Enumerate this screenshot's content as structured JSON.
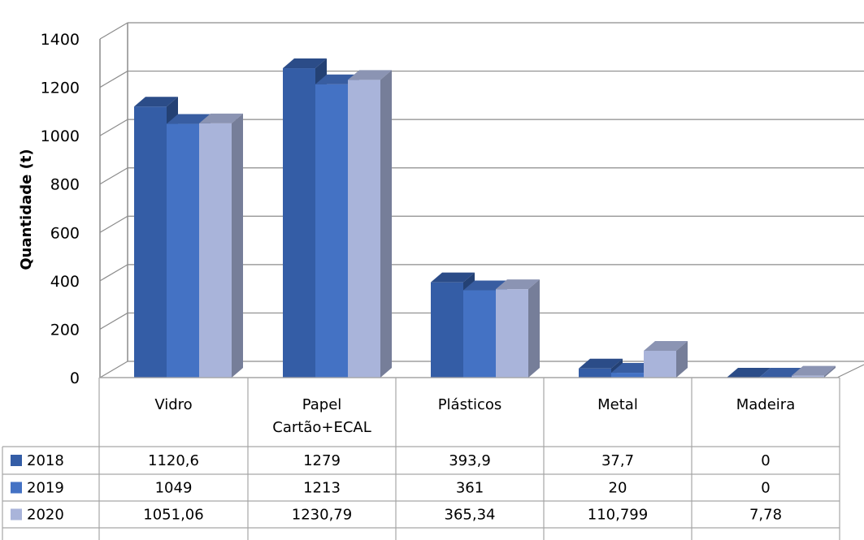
{
  "chart_data": {
    "type": "bar",
    "variant": "3d-clustered-column-with-data-table",
    "categories": [
      "Vidro",
      "Papel\nCartão+ECAL",
      "Plásticos",
      "Metal",
      "Madeira"
    ],
    "series": [
      {
        "name": "2018",
        "color": "#345DA6",
        "values": [
          1120.6,
          1279,
          393.9,
          37.7,
          0
        ],
        "labels": [
          "1120,6",
          "1279",
          "393,9",
          "37,7",
          "0"
        ]
      },
      {
        "name": "2019",
        "color": "#4472C4",
        "values": [
          1049,
          1213,
          361,
          20,
          0
        ],
        "labels": [
          "1049",
          "1213",
          "361",
          "20",
          "0"
        ]
      },
      {
        "name": "2020",
        "color": "#A9B4DA",
        "values": [
          1051.06,
          1230.79,
          365.34,
          110.799,
          7.78
        ],
        "labels": [
          "1051,06",
          "1230,79",
          "365,34",
          "110,799",
          "7,78"
        ]
      }
    ],
    "ylabel": "Quantidade (t)",
    "xlabel": "",
    "ylim": [
      0,
      1400
    ],
    "yticks": [
      "0",
      "200",
      "400",
      "600",
      "800",
      "1000",
      "1200",
      "1400"
    ],
    "grid": true,
    "legend": "data-table"
  }
}
